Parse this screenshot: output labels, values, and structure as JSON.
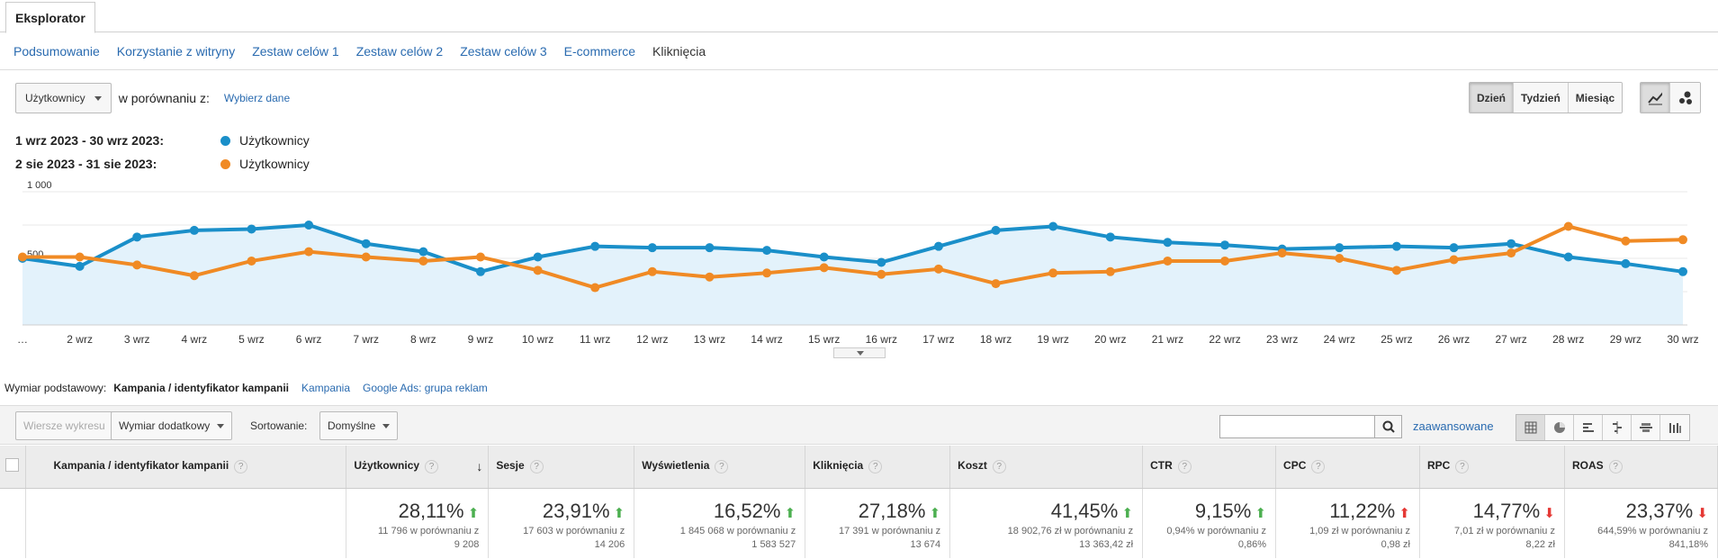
{
  "tabs": {
    "main": "Eksplorator"
  },
  "subtabs": [
    {
      "label": "Podsumowanie",
      "active": false
    },
    {
      "label": "Korzystanie z witryny",
      "active": false
    },
    {
      "label": "Zestaw celów 1",
      "active": false
    },
    {
      "label": "Zestaw celów 2",
      "active": false
    },
    {
      "label": "Zestaw celów 3",
      "active": false
    },
    {
      "label": "E-commerce",
      "active": false
    },
    {
      "label": "Kliknięcia",
      "active": true
    }
  ],
  "controls": {
    "metric_select": "Użytkownicy",
    "compare_label": "w porównaniu z:",
    "compare_link": "Wybierz dane",
    "period_buttons": [
      "Dzień",
      "Tydzień",
      "Miesiąc"
    ],
    "period_active": "Dzień"
  },
  "legend": [
    {
      "range": "1 wrz 2023 - 30 wrz 2023:",
      "name": "Użytkownicy",
      "color": "#1a8fc9"
    },
    {
      "range": "2 sie 2023 - 31 sie 2023:",
      "name": "Użytkownicy",
      "color": "#f08a24"
    }
  ],
  "chart_data": {
    "type": "line",
    "x": [
      "…",
      "2 wrz",
      "3 wrz",
      "4 wrz",
      "5 wrz",
      "6 wrz",
      "7 wrz",
      "8 wrz",
      "9 wrz",
      "10 wrz",
      "11 wrz",
      "12 wrz",
      "13 wrz",
      "14 wrz",
      "15 wrz",
      "16 wrz",
      "17 wrz",
      "18 wrz",
      "19 wrz",
      "20 wrz",
      "21 wrz",
      "22 wrz",
      "23 wrz",
      "24 wrz",
      "25 wrz",
      "26 wrz",
      "27 wrz",
      "28 wrz",
      "29 wrz",
      "30 wrz"
    ],
    "series": [
      {
        "name": "Użytkownicy",
        "color": "#1a8fc9",
        "values": [
          500,
          440,
          660,
          710,
          720,
          750,
          610,
          550,
          400,
          510,
          590,
          580,
          580,
          560,
          510,
          470,
          590,
          710,
          740,
          660,
          620,
          600,
          570,
          580,
          590,
          580,
          610,
          510,
          460,
          400
        ]
      },
      {
        "name": "Użytkownicy",
        "color": "#f08a24",
        "values": [
          510,
          510,
          450,
          370,
          480,
          550,
          510,
          480,
          510,
          410,
          280,
          400,
          360,
          390,
          430,
          380,
          420,
          310,
          390,
          400,
          480,
          480,
          540,
          500,
          410,
          490,
          540,
          740,
          630,
          640
        ]
      }
    ],
    "y_ticks": [
      "1 000",
      "500"
    ],
    "ylim": [
      0,
      1000
    ],
    "grid": true
  },
  "dimension": {
    "label": "Wymiar podstawowy:",
    "active": "Kampania / identyfikator kampanii",
    "options": [
      "Kampania",
      "Google Ads: grupa reklam"
    ]
  },
  "toolbar": {
    "chart_rows": "Wiersze wykresu",
    "secondary_dim": "Wymiar dodatkowy",
    "sort_label": "Sortowanie:",
    "sort_value": "Domyślne",
    "advanced": "zaawansowane"
  },
  "table": {
    "columns": [
      "Kampania / identyfikator kampanii",
      "Użytkownicy",
      "Sesje",
      "Wyświetlenia",
      "Kliknięcia",
      "Koszt",
      "CTR",
      "CPC",
      "RPC",
      "ROAS"
    ],
    "summary": [
      {
        "pct": "28,11%",
        "dir": "up",
        "cmp1": "11 796 w porównaniu z",
        "cmp2": "9 208"
      },
      {
        "pct": "23,91%",
        "dir": "up",
        "cmp1": "17 603 w porównaniu z",
        "cmp2": "14 206"
      },
      {
        "pct": "16,52%",
        "dir": "up",
        "cmp1": "1 845 068 w porównaniu z",
        "cmp2": "1 583 527"
      },
      {
        "pct": "27,18%",
        "dir": "up",
        "cmp1": "17 391 w porównaniu z",
        "cmp2": "13 674"
      },
      {
        "pct": "41,45%",
        "dir": "up",
        "cmp1": "18 902,76 zł w porównaniu z",
        "cmp2": "13 363,42 zł"
      },
      {
        "pct": "9,15%",
        "dir": "up",
        "cmp1": "0,94% w porównaniu z",
        "cmp2": "0,86%"
      },
      {
        "pct": "11,22%",
        "dir": "up-red",
        "cmp1": "1,09 zł w porównaniu z",
        "cmp2": "0,98 zł"
      },
      {
        "pct": "14,77%",
        "dir": "down",
        "cmp1": "7,01 zł w porównaniu z",
        "cmp2": "8,22 zł"
      },
      {
        "pct": "23,37%",
        "dir": "down",
        "cmp1": "644,59% w porównaniu z",
        "cmp2": "841,18%"
      }
    ]
  }
}
